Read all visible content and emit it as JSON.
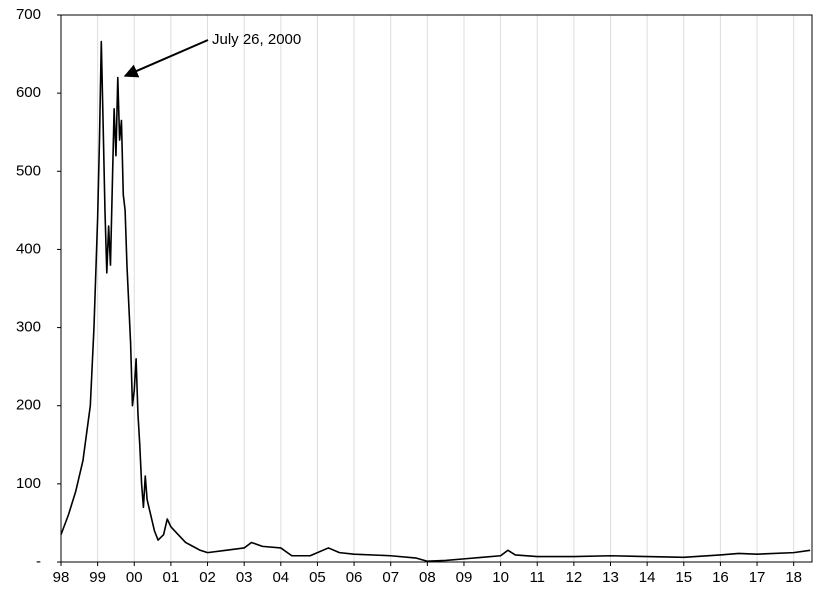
{
  "chart_data": {
    "type": "line",
    "annotation": "July 26, 2000",
    "x": [
      1998.0,
      1998.2,
      1998.4,
      1998.6,
      1998.8,
      1998.9,
      1999.0,
      1999.05,
      1999.1,
      1999.15,
      1999.2,
      1999.25,
      1999.3,
      1999.35,
      1999.45,
      1999.5,
      1999.55,
      1999.6,
      1999.65,
      1999.7,
      1999.75,
      1999.8,
      1999.85,
      1999.9,
      1999.95,
      2000.0,
      2000.05,
      2000.1,
      2000.15,
      2000.2,
      2000.25,
      2000.3,
      2000.35,
      2000.45,
      2000.55,
      2000.65,
      2000.8,
      2000.9,
      2001.0,
      2001.2,
      2001.4,
      2001.6,
      2001.8,
      2002.0,
      2002.5,
      2003.0,
      2003.2,
      2003.5,
      2004.0,
      2004.3,
      2004.8,
      2005.0,
      2005.3,
      2005.6,
      2006.0,
      2007.0,
      2007.7,
      2008.0,
      2008.5,
      2009.0,
      2009.5,
      2010.0,
      2010.2,
      2010.4,
      2011.0,
      2012.0,
      2013.0,
      2014.0,
      2015.0,
      2016.0,
      2016.5,
      2017.0,
      2018.0,
      2018.45
    ],
    "series": [
      {
        "color": "#000000",
        "values": [
          35,
          60,
          90,
          130,
          200,
          300,
          440,
          540,
          666,
          560,
          450,
          370,
          430,
          380,
          580,
          520,
          620,
          540,
          565,
          470,
          450,
          380,
          330,
          280,
          200,
          220,
          260,
          190,
          150,
          100,
          70,
          110,
          80,
          60,
          40,
          28,
          35,
          55,
          45,
          35,
          25,
          20,
          15,
          12,
          15,
          18,
          25,
          20,
          18,
          8,
          8,
          12,
          18,
          12,
          10,
          8,
          5,
          1,
          2,
          4,
          6,
          8,
          15,
          9,
          7,
          7,
          8,
          7,
          6,
          9,
          11,
          10,
          12,
          15
        ]
      }
    ],
    "xlim": [
      1998,
      2018.5
    ],
    "xticks": [
      {
        "value": 1998,
        "label": "98"
      },
      {
        "value": 1999,
        "label": "99"
      },
      {
        "value": 2000,
        "label": "00"
      },
      {
        "value": 2001,
        "label": "01"
      },
      {
        "value": 2002,
        "label": "02"
      },
      {
        "value": 2003,
        "label": "03"
      },
      {
        "value": 2004,
        "label": "04"
      },
      {
        "value": 2005,
        "label": "05"
      },
      {
        "value": 2006,
        "label": "06"
      },
      {
        "value": 2007,
        "label": "07"
      },
      {
        "value": 2008,
        "label": "08"
      },
      {
        "value": 2009,
        "label": "09"
      },
      {
        "value": 2010,
        "label": "10"
      },
      {
        "value": 2011,
        "label": "11"
      },
      {
        "value": 2012,
        "label": "12"
      },
      {
        "value": 2013,
        "label": "13"
      },
      {
        "value": 2014,
        "label": "14"
      },
      {
        "value": 2015,
        "label": "15"
      },
      {
        "value": 2016,
        "label": "16"
      },
      {
        "value": 2017,
        "label": "17"
      },
      {
        "value": 2018,
        "label": "18"
      }
    ],
    "ylim": [
      0,
      700
    ],
    "yticks": [
      {
        "value": 0,
        "label": "-"
      },
      100,
      200,
      300,
      400,
      500,
      600,
      700
    ],
    "grid": "x"
  }
}
